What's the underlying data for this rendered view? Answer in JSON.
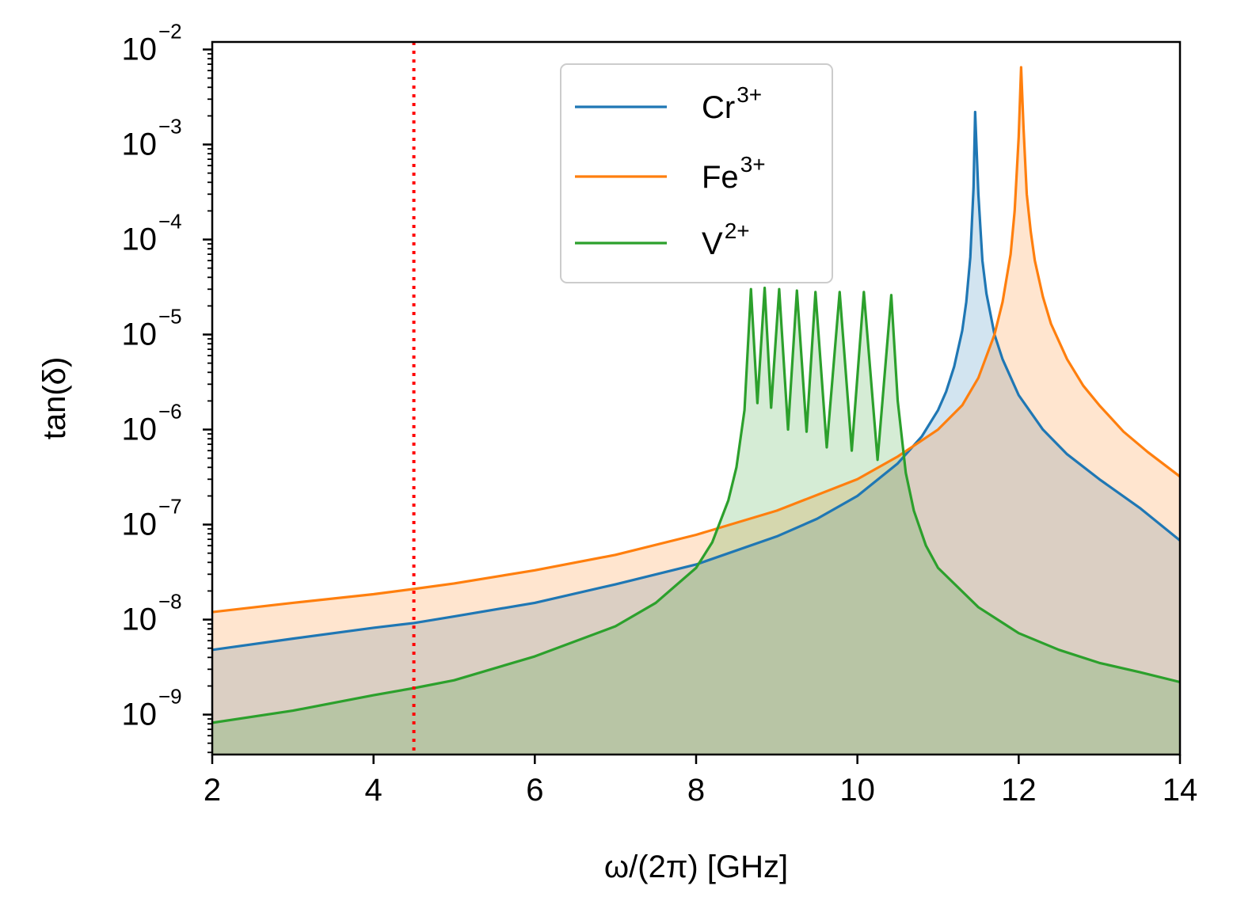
{
  "chart_data": {
    "type": "line",
    "title": "",
    "xlabel": "ω/(2π) [GHz]",
    "ylabel": "tan(δ)",
    "xscale": "linear",
    "yscale": "log",
    "xlim": [
      2,
      14
    ],
    "ylim": [
      3.8e-10,
      0.012
    ],
    "xticks": [
      2,
      4,
      6,
      8,
      10,
      12,
      14
    ],
    "xtick_labels": [
      "2",
      "4",
      "6",
      "8",
      "10",
      "12",
      "14"
    ],
    "yticks": [
      {
        "value": 1e-09,
        "base": "10",
        "exp": "−9"
      },
      {
        "value": 1e-08,
        "base": "10",
        "exp": "−8"
      },
      {
        "value": 1e-07,
        "base": "10",
        "exp": "−7"
      },
      {
        "value": 1e-06,
        "base": "10",
        "exp": "−6"
      },
      {
        "value": 1e-05,
        "base": "10",
        "exp": "−5"
      },
      {
        "value": 0.0001,
        "base": "10",
        "exp": "−4"
      },
      {
        "value": 0.001,
        "base": "10",
        "exp": "−3"
      },
      {
        "value": 0.01,
        "base": "10",
        "exp": "−2"
      }
    ],
    "reference_line": {
      "x": 4.5,
      "style": "dotted",
      "color": "#ff0000"
    },
    "legend_position": "upper center",
    "series": [
      {
        "name": "Cr",
        "superscript": "3+",
        "color": "#1f77b4",
        "fill": true,
        "x": [
          2,
          3,
          4,
          4.5,
          5,
          6,
          7,
          8,
          9,
          9.5,
          10,
          10.5,
          10.8,
          11.0,
          11.1,
          11.2,
          11.3,
          11.35,
          11.4,
          11.44,
          11.46,
          11.5,
          11.55,
          11.6,
          11.7,
          11.8,
          12.0,
          12.3,
          12.6,
          13.0,
          13.5,
          14
        ],
        "values": [
          4.8e-09,
          6.3e-09,
          8.2e-09,
          9.2e-09,
          1.08e-08,
          1.5e-08,
          2.35e-08,
          3.8e-08,
          7.5e-08,
          1.15e-07,
          2e-07,
          4.4e-07,
          8.5e-07,
          1.6e-06,
          2.5e-06,
          4.6e-06,
          1.1e-05,
          2.2e-05,
          6.5e-05,
          0.00035,
          0.0022,
          0.0003,
          6e-05,
          2.7e-05,
          1e-05,
          5.5e-06,
          2.3e-06,
          1e-06,
          5.5e-07,
          3e-07,
          1.5e-07,
          6.8e-08
        ]
      },
      {
        "name": "Fe",
        "superscript": "3+",
        "color": "#ff7f0e",
        "fill": true,
        "x": [
          2,
          3,
          4,
          4.5,
          5,
          6,
          7,
          8,
          9,
          10,
          10.5,
          11,
          11.3,
          11.5,
          11.7,
          11.8,
          11.9,
          11.95,
          12.0,
          12.03,
          12.06,
          12.1,
          12.15,
          12.2,
          12.3,
          12.4,
          12.6,
          12.8,
          13.0,
          13.3,
          13.6,
          14
        ],
        "values": [
          1.2e-08,
          1.5e-08,
          1.85e-08,
          2.1e-08,
          2.4e-08,
          3.3e-08,
          4.8e-08,
          7.8e-08,
          1.4e-07,
          3e-07,
          5.2e-07,
          1e-06,
          1.8e-06,
          3.5e-06,
          1e-05,
          2.2e-05,
          7e-05,
          0.0002,
          0.0012,
          0.0065,
          0.0015,
          0.0003,
          0.00012,
          6e-05,
          2.5e-05,
          1.3e-05,
          5.5e-06,
          2.9e-06,
          1.8e-06,
          9.5e-07,
          5.8e-07,
          3.2e-07
        ]
      },
      {
        "name": "V",
        "superscript": "2+",
        "color": "#2ca02c",
        "fill": true,
        "x": [
          2,
          3,
          4,
          4.5,
          5,
          6,
          7,
          7.5,
          8,
          8.2,
          8.4,
          8.5,
          8.6,
          8.68,
          8.76,
          8.85,
          8.93,
          9.03,
          9.14,
          9.25,
          9.37,
          9.48,
          9.62,
          9.78,
          9.93,
          10.08,
          10.25,
          10.42,
          10.5,
          10.6,
          10.7,
          10.85,
          11.0,
          11.5,
          12.0,
          12.5,
          13.0,
          13.5,
          14
        ],
        "values": [
          8.2e-10,
          1.1e-09,
          1.6e-09,
          1.9e-09,
          2.3e-09,
          4.1e-09,
          8.5e-09,
          1.5e-08,
          3.5e-08,
          6.5e-08,
          1.8e-07,
          4e-07,
          1.6e-06,
          3e-05,
          1.9e-06,
          3.1e-05,
          1.7e-06,
          3e-05,
          1e-06,
          2.9e-05,
          9.5e-07,
          2.8e-05,
          6.5e-07,
          2.8e-05,
          6e-07,
          2.8e-05,
          4.8e-07,
          2.6e-05,
          2e-06,
          3.5e-07,
          1.4e-07,
          6e-08,
          3.5e-08,
          1.35e-08,
          7.2e-09,
          4.8e-09,
          3.5e-09,
          2.8e-09,
          2.2e-09
        ]
      }
    ]
  }
}
